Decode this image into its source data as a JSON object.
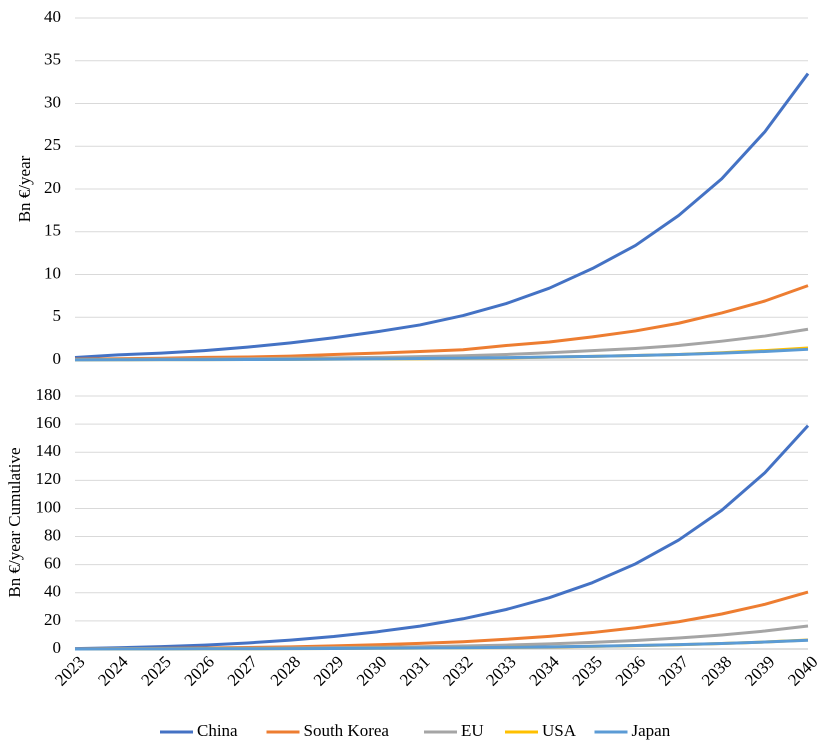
{
  "chart_data": [
    {
      "type": "line",
      "y_label": "Bn €/year",
      "ylim": [
        0,
        40
      ],
      "yticks": [
        0,
        5,
        10,
        15,
        20,
        25,
        30,
        35,
        40
      ],
      "grid": true,
      "series": [
        {
          "color": "#4472c4",
          "values": [
            0.3,
            0.6,
            0.8,
            1.1,
            1.5,
            2.0,
            2.6,
            3.3,
            4.1,
            5.2,
            6.6,
            8.4,
            10.7,
            13.4,
            16.9,
            21.2,
            26.7,
            33.5
          ]
        },
        {
          "color": "#ed7d31",
          "values": [
            0.1,
            0.15,
            0.2,
            0.3,
            0.35,
            0.45,
            0.65,
            0.8,
            1.0,
            1.2,
            1.7,
            2.1,
            2.7,
            3.4,
            4.3,
            5.5,
            6.9,
            8.7
          ]
        },
        {
          "color": "#a5a5a5",
          "values": [
            0.05,
            0.07,
            0.1,
            0.12,
            0.15,
            0.2,
            0.25,
            0.3,
            0.4,
            0.5,
            0.65,
            0.85,
            1.1,
            1.35,
            1.7,
            2.2,
            2.8,
            3.6
          ]
        },
        {
          "color": "#ffc000",
          "values": [
            0.02,
            0.03,
            0.04,
            0.05,
            0.06,
            0.08,
            0.1,
            0.12,
            0.15,
            0.2,
            0.25,
            0.33,
            0.42,
            0.52,
            0.65,
            0.85,
            1.1,
            1.4
          ]
        },
        {
          "color": "#5b9bd5",
          "values": [
            0.02,
            0.03,
            0.04,
            0.05,
            0.06,
            0.08,
            0.1,
            0.13,
            0.17,
            0.22,
            0.28,
            0.35,
            0.43,
            0.53,
            0.65,
            0.8,
            1.0,
            1.25
          ]
        }
      ]
    },
    {
      "type": "line",
      "y_label": "Bn €/year Cumulative",
      "ylim": [
        0,
        180
      ],
      "yticks": [
        0,
        20,
        40,
        60,
        80,
        100,
        120,
        140,
        160,
        180
      ],
      "grid": true,
      "legend": "bottom",
      "categories": [
        "2023",
        "2024",
        "2025",
        "2026",
        "2027",
        "2028",
        "2029",
        "2030",
        "2031",
        "2032",
        "2033",
        "2034",
        "2035",
        "2036",
        "2037",
        "2038",
        "2039",
        "2040"
      ],
      "series": [
        {
          "name": "China",
          "color": "#4472c4",
          "values": [
            0.3,
            0.9,
            1.7,
            2.8,
            4.3,
            6.3,
            8.9,
            12.2,
            16.3,
            21.5,
            28.1,
            36.5,
            47.2,
            60.6,
            77.5,
            98.7,
            125.4,
            158.9
          ]
        },
        {
          "name": "South Korea",
          "color": "#ed7d31",
          "values": [
            0.1,
            0.25,
            0.45,
            0.75,
            1.1,
            1.55,
            2.2,
            3.0,
            4.0,
            5.2,
            6.9,
            9.0,
            11.7,
            15.1,
            19.4,
            24.9,
            31.8,
            40.5
          ]
        },
        {
          "name": "EU",
          "color": "#a5a5a5",
          "values": [
            0.05,
            0.12,
            0.22,
            0.34,
            0.49,
            0.69,
            0.94,
            1.24,
            1.64,
            2.14,
            2.79,
            3.64,
            4.74,
            6.09,
            7.79,
            9.99,
            12.79,
            16.39
          ]
        },
        {
          "name": "USA",
          "color": "#ffc000",
          "values": [
            0.02,
            0.05,
            0.09,
            0.14,
            0.2,
            0.28,
            0.38,
            0.5,
            0.65,
            0.85,
            1.1,
            1.43,
            1.85,
            2.37,
            3.02,
            3.87,
            4.97,
            6.37
          ]
        },
        {
          "name": "Japan",
          "color": "#5b9bd5",
          "values": [
            0.02,
            0.05,
            0.09,
            0.14,
            0.2,
            0.28,
            0.38,
            0.51,
            0.68,
            0.9,
            1.18,
            1.53,
            1.96,
            2.49,
            3.14,
            3.94,
            4.94,
            6.19
          ]
        }
      ]
    }
  ]
}
